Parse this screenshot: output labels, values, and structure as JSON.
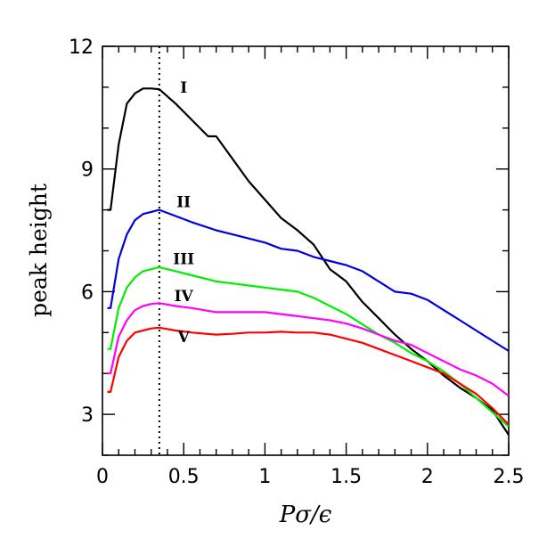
{
  "chart_data": {
    "type": "line",
    "title": "",
    "xlabel": "Pσ/ϵ",
    "ylabel": "peak height",
    "xlim": [
      0,
      2.5
    ],
    "ylim": [
      2,
      12
    ],
    "xticks": [
      0,
      0.5,
      1,
      1.5,
      2,
      2.5
    ],
    "xtick_labels": [
      "0",
      "0.5",
      "1",
      "1.5",
      "2",
      "2.5"
    ],
    "yticks": [
      3,
      6,
      9,
      12
    ],
    "ytick_labels": [
      "3",
      "6",
      "9",
      "12"
    ],
    "vline": {
      "x": 0.35,
      "style": "dotted"
    },
    "grid": false,
    "series": [
      {
        "name": "I",
        "color": "#000000",
        "label_at": [
          0.5,
          11.0
        ],
        "x": [
          0.03,
          0.05,
          0.1,
          0.15,
          0.2,
          0.25,
          0.3,
          0.35,
          0.45,
          0.55,
          0.65,
          0.7,
          0.8,
          0.9,
          1.0,
          1.1,
          1.2,
          1.3,
          1.4,
          1.5,
          1.6,
          1.7,
          1.8,
          1.9,
          2.0,
          2.1,
          2.2,
          2.3,
          2.4,
          2.5
        ],
        "y": [
          8.0,
          8.0,
          9.6,
          10.6,
          10.85,
          10.97,
          10.97,
          10.95,
          10.6,
          10.2,
          9.8,
          9.8,
          9.25,
          8.7,
          8.25,
          7.8,
          7.5,
          7.15,
          6.55,
          6.25,
          5.75,
          5.35,
          4.95,
          4.6,
          4.3,
          3.95,
          3.65,
          3.4,
          3.1,
          2.5
        ]
      },
      {
        "name": "II",
        "color": "#0000dd",
        "label_at": [
          0.5,
          8.2
        ],
        "x": [
          0.03,
          0.05,
          0.1,
          0.15,
          0.2,
          0.25,
          0.3,
          0.35,
          0.45,
          0.55,
          0.7,
          0.8,
          0.9,
          1.0,
          1.1,
          1.2,
          1.3,
          1.4,
          1.5,
          1.6,
          1.7,
          1.8,
          1.9,
          2.0,
          2.1,
          2.2,
          2.3,
          2.4,
          2.5
        ],
        "y": [
          5.6,
          5.6,
          6.8,
          7.4,
          7.75,
          7.9,
          7.95,
          8.0,
          7.85,
          7.7,
          7.5,
          7.4,
          7.3,
          7.2,
          7.05,
          7.0,
          6.85,
          6.75,
          6.65,
          6.5,
          6.25,
          6.0,
          5.95,
          5.8,
          5.55,
          5.3,
          5.05,
          4.8,
          4.55
        ]
      },
      {
        "name": "III",
        "color": "#00ee00",
        "label_at": [
          0.5,
          6.8
        ],
        "x": [
          0.03,
          0.05,
          0.1,
          0.15,
          0.2,
          0.25,
          0.3,
          0.35,
          0.45,
          0.55,
          0.7,
          0.8,
          0.9,
          1.0,
          1.1,
          1.2,
          1.3,
          1.4,
          1.5,
          1.6,
          1.7,
          1.8,
          1.9,
          2.0,
          2.1,
          2.2,
          2.3,
          2.4,
          2.5
        ],
        "y": [
          4.6,
          4.6,
          5.6,
          6.1,
          6.35,
          6.5,
          6.55,
          6.6,
          6.5,
          6.4,
          6.25,
          6.2,
          6.15,
          6.1,
          6.05,
          6.0,
          5.85,
          5.65,
          5.45,
          5.2,
          4.95,
          4.75,
          4.5,
          4.3,
          4.05,
          3.75,
          3.4,
          3.05,
          2.7
        ]
      },
      {
        "name": "IV",
        "color": "#ff00ff",
        "label_at": [
          0.5,
          5.9
        ],
        "x": [
          0.03,
          0.05,
          0.1,
          0.15,
          0.2,
          0.25,
          0.3,
          0.35,
          0.45,
          0.55,
          0.7,
          0.8,
          0.9,
          1.0,
          1.1,
          1.2,
          1.3,
          1.4,
          1.5,
          1.6,
          1.7,
          1.8,
          1.9,
          2.0,
          2.1,
          2.2,
          2.3,
          2.4,
          2.5
        ],
        "y": [
          4.0,
          4.0,
          4.9,
          5.3,
          5.55,
          5.65,
          5.7,
          5.72,
          5.65,
          5.6,
          5.5,
          5.5,
          5.5,
          5.5,
          5.45,
          5.4,
          5.35,
          5.3,
          5.22,
          5.1,
          4.95,
          4.8,
          4.7,
          4.5,
          4.3,
          4.1,
          3.95,
          3.75,
          3.45
        ]
      },
      {
        "name": "V",
        "color": "#ff0000",
        "label_at": [
          0.5,
          4.9
        ],
        "x": [
          0.03,
          0.05,
          0.1,
          0.15,
          0.2,
          0.25,
          0.3,
          0.35,
          0.45,
          0.55,
          0.7,
          0.8,
          0.9,
          1.0,
          1.1,
          1.2,
          1.3,
          1.4,
          1.5,
          1.6,
          1.7,
          1.8,
          1.9,
          2.0,
          2.1,
          2.2,
          2.3,
          2.4,
          2.5
        ],
        "y": [
          3.55,
          3.55,
          4.4,
          4.8,
          5.0,
          5.05,
          5.1,
          5.12,
          5.05,
          5.0,
          4.95,
          4.97,
          5.0,
          5.0,
          5.02,
          5.0,
          5.0,
          4.95,
          4.85,
          4.75,
          4.6,
          4.45,
          4.3,
          4.15,
          4.0,
          3.75,
          3.5,
          3.15,
          2.75
        ]
      }
    ]
  }
}
